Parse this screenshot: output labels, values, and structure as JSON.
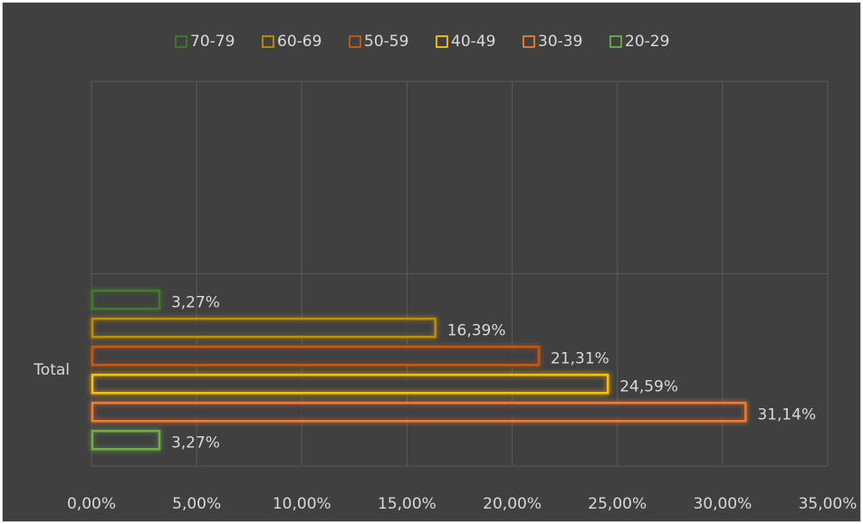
{
  "chart_data": {
    "type": "bar",
    "orientation": "horizontal",
    "categories": [
      "Total",
      null
    ],
    "series": [
      {
        "name": "70-79",
        "color": "#3f7a2a",
        "values": [
          3.27,
          null
        ],
        "value_labels": [
          "3,27%",
          null
        ]
      },
      {
        "name": "60-69",
        "color": "#bf8f00",
        "values": [
          16.39,
          null
        ],
        "value_labels": [
          "16,39%",
          null
        ]
      },
      {
        "name": "50-59",
        "color": "#c55a11",
        "values": [
          21.31,
          null
        ],
        "value_labels": [
          "21,31%",
          null
        ]
      },
      {
        "name": "40-49",
        "color": "#ffc000",
        "values": [
          24.59,
          null
        ],
        "value_labels": [
          "24,59%",
          null
        ]
      },
      {
        "name": "30-39",
        "color": "#ed7d31",
        "values": [
          31.14,
          null
        ],
        "value_labels": [
          "31,14%",
          null
        ]
      },
      {
        "name": "20-29",
        "color": "#70ad47",
        "values": [
          3.27,
          null
        ],
        "value_labels": [
          "3,27%",
          null
        ]
      }
    ],
    "xlim": [
      0,
      35
    ],
    "xticks": [
      {
        "value": 0,
        "label": "0,00%"
      },
      {
        "value": 5,
        "label": "5,00%"
      },
      {
        "value": 10,
        "label": "10,00%"
      },
      {
        "value": 15,
        "label": "15,00%"
      },
      {
        "value": 20,
        "label": "20,00%"
      },
      {
        "value": 25,
        "label": "25,00%"
      },
      {
        "value": 30,
        "label": "30,00%"
      },
      {
        "value": 35,
        "label": "35,00%"
      }
    ],
    "grid": true,
    "legend": "top"
  }
}
